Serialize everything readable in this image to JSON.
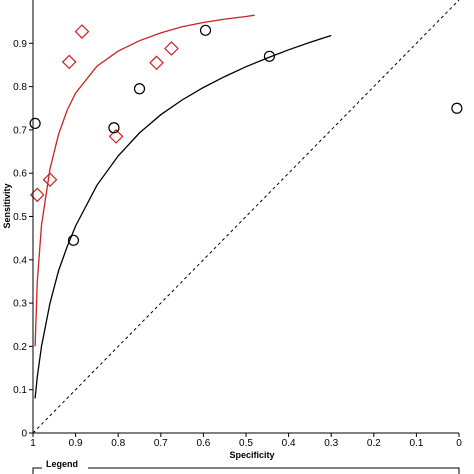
{
  "chart_data": {
    "type": "scatter",
    "title": "",
    "xlabel": "Specificity",
    "ylabel": "Sensitivity",
    "x_reversed": true,
    "xlim": [
      1,
      0
    ],
    "ylim": [
      0,
      1
    ],
    "x_ticks": [
      "1",
      "0.9",
      "0.8",
      "0.7",
      "0.6",
      "0.5",
      "0.4",
      "0.3",
      "0.2",
      "0.1",
      "0"
    ],
    "y_ticks": [
      "0",
      "0.1",
      "0.2",
      "0.3",
      "0.4",
      "0.5",
      "0.6",
      "0.7",
      "0.8",
      "0.9"
    ],
    "legend_title": "Legend",
    "legend_position": "bottom",
    "series": [
      {
        "marker": "diamond",
        "color": "#cc2222",
        "points": [
          {
            "x": 0.99,
            "y": 0.55
          },
          {
            "x": 0.96,
            "y": 0.585
          },
          {
            "x": 0.915,
            "y": 0.857
          },
          {
            "x": 0.885,
            "y": 0.927
          },
          {
            "x": 0.805,
            "y": 0.685
          },
          {
            "x": 0.71,
            "y": 0.855
          },
          {
            "x": 0.675,
            "y": 0.888
          }
        ]
      },
      {
        "marker": "circle",
        "color": "#000000",
        "points": [
          {
            "x": 0.995,
            "y": 0.715
          },
          {
            "x": 0.905,
            "y": 0.445
          },
          {
            "x": 0.81,
            "y": 0.705
          },
          {
            "x": 0.75,
            "y": 0.795
          },
          {
            "x": 0.595,
            "y": 0.93
          },
          {
            "x": 0.445,
            "y": 0.87
          },
          {
            "x": 0.005,
            "y": 0.75
          }
        ]
      }
    ],
    "curves": [
      {
        "color": "#cc2222",
        "points": [
          [
            0.995,
            0.2
          ],
          [
            0.99,
            0.35
          ],
          [
            0.98,
            0.48
          ],
          [
            0.96,
            0.61
          ],
          [
            0.94,
            0.69
          ],
          [
            0.92,
            0.745
          ],
          [
            0.9,
            0.785
          ],
          [
            0.85,
            0.847
          ],
          [
            0.8,
            0.882
          ],
          [
            0.75,
            0.906
          ],
          [
            0.7,
            0.924
          ],
          [
            0.65,
            0.938
          ],
          [
            0.6,
            0.948
          ],
          [
            0.55,
            0.956
          ],
          [
            0.5,
            0.962
          ],
          [
            0.48,
            0.965
          ]
        ]
      },
      {
        "color": "#000000",
        "points": [
          [
            0.995,
            0.08
          ],
          [
            0.99,
            0.13
          ],
          [
            0.98,
            0.2
          ],
          [
            0.96,
            0.3
          ],
          [
            0.94,
            0.375
          ],
          [
            0.92,
            0.43
          ],
          [
            0.9,
            0.478
          ],
          [
            0.85,
            0.572
          ],
          [
            0.8,
            0.64
          ],
          [
            0.75,
            0.693
          ],
          [
            0.7,
            0.735
          ],
          [
            0.65,
            0.769
          ],
          [
            0.6,
            0.798
          ],
          [
            0.55,
            0.823
          ],
          [
            0.5,
            0.846
          ],
          [
            0.45,
            0.866
          ],
          [
            0.4,
            0.885
          ],
          [
            0.35,
            0.902
          ],
          [
            0.3,
            0.918
          ]
        ]
      },
      {
        "color": "#000000",
        "dashed": true,
        "points": [
          [
            1,
            0
          ],
          [
            0,
            1
          ]
        ]
      }
    ]
  }
}
